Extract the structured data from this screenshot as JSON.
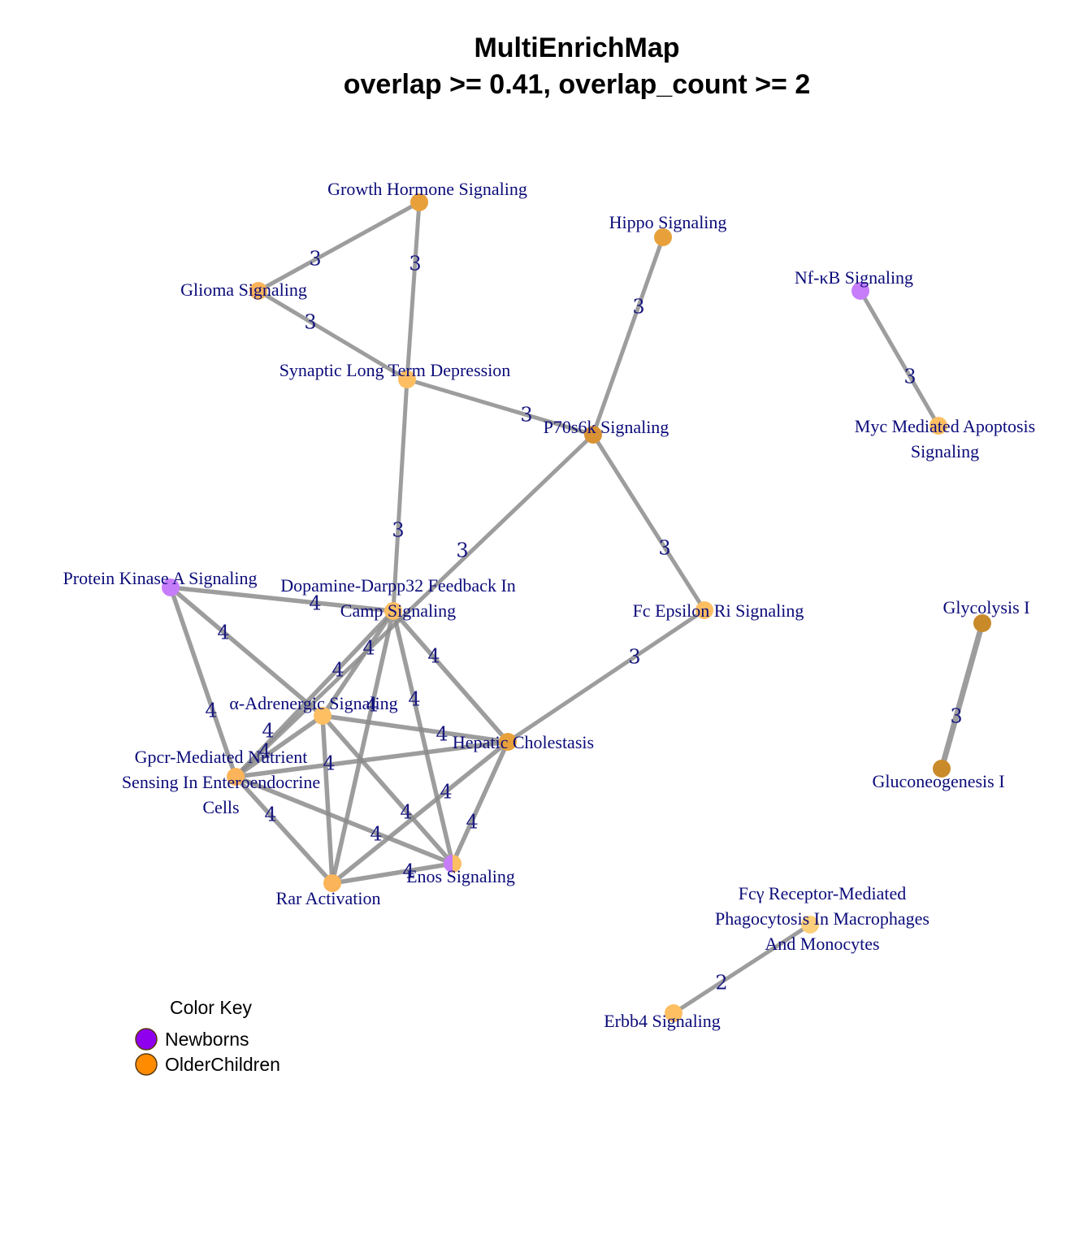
{
  "title": {
    "line1": "MultiEnrichMap",
    "line2": "overlap >= 0.41, overlap_count >= 2"
  },
  "colors": {
    "newborns": "#8f00ee",
    "older_children": "#ff8c00",
    "edge": "#8c8c8c",
    "label": "#0b0b7a"
  },
  "nodes": [
    {
      "id": "growth_hormone",
      "label": [
        "Growth Hormone Signaling"
      ],
      "fill": "#e8a13a"
    },
    {
      "id": "hippo",
      "label": [
        "Hippo Signaling"
      ],
      "fill": "#e8a13a"
    },
    {
      "id": "nfkb",
      "label": [
        "Nf-κB Signaling"
      ],
      "fill": "#c77dfa"
    },
    {
      "id": "glioma",
      "label": [
        "Glioma Signaling"
      ],
      "fill": "#fbb459"
    },
    {
      "id": "synaptic_ltd",
      "label": [
        "Synaptic Long Term Depression"
      ],
      "fill": "#fdbf62"
    },
    {
      "id": "p70s6k",
      "label": [
        "P70s6k Signaling"
      ],
      "fill": "#d99233"
    },
    {
      "id": "myc_apoptosis",
      "label": [
        "Myc Mediated Apoptosis",
        "Signaling"
      ],
      "fill": "#fdbf62"
    },
    {
      "id": "pka",
      "label": [
        "Protein Kinase A Signaling"
      ],
      "fill": "#c77dfa"
    },
    {
      "id": "dopamine",
      "label": [
        "Dopamine-Darpp32 Feedback In",
        "Camp Signaling"
      ],
      "fill": "#fdbf62"
    },
    {
      "id": "fc_epsilon",
      "label": [
        "Fc Epsilon Ri Signaling"
      ],
      "fill": "#fdbf62"
    },
    {
      "id": "glycolysis",
      "label": [
        "Glycolysis I"
      ],
      "fill": "#c98a2a"
    },
    {
      "id": "alpha_adrenergic",
      "label": [
        "α-Adrenergic Signaling"
      ],
      "fill": "#fdbf62"
    },
    {
      "id": "hepatic_cholestasis",
      "label": [
        "Hepatic Cholestasis"
      ],
      "fill": "#e8a13a"
    },
    {
      "id": "gpcr_nutrient",
      "label": [
        "Gpcr-Mediated Nutrient",
        "Sensing In Enteroendocrine",
        "Cells"
      ],
      "fill": "#fbb459"
    },
    {
      "id": "gluconeogenesis",
      "label": [
        "Gluconeogenesis I"
      ],
      "fill": "#c98a2a"
    },
    {
      "id": "rar",
      "label": [
        "Rar Activation"
      ],
      "fill": "#fbb459"
    },
    {
      "id": "enos",
      "label": [
        "Enos Signaling"
      ],
      "fill": "split"
    },
    {
      "id": "fcgamma",
      "label": [
        "Fcγ Receptor-Mediated",
        "Phagocytosis In Macrophages",
        "And Monocytes"
      ],
      "fill": "#fdcf7a"
    },
    {
      "id": "erbb4",
      "label": [
        "Erbb4 Signaling"
      ],
      "fill": "#fdbf62"
    }
  ],
  "edges": [
    {
      "from": "glioma",
      "to": "growth_hormone",
      "weight": "3"
    },
    {
      "from": "growth_hormone",
      "to": "synaptic_ltd",
      "weight": "3"
    },
    {
      "from": "glioma",
      "to": "synaptic_ltd",
      "weight": "3"
    },
    {
      "from": "synaptic_ltd",
      "to": "p70s6k",
      "weight": "3"
    },
    {
      "from": "hippo",
      "to": "p70s6k",
      "weight": "3"
    },
    {
      "from": "nfkb",
      "to": "myc_apoptosis",
      "weight": "3"
    },
    {
      "from": "synaptic_ltd",
      "to": "dopamine",
      "weight": "3"
    },
    {
      "from": "p70s6k",
      "to": "gpcr_nutrient",
      "weight": "3"
    },
    {
      "from": "p70s6k",
      "to": "fc_epsilon",
      "weight": "3"
    },
    {
      "from": "fc_epsilon",
      "to": "hepatic_cholestasis",
      "weight": "3"
    },
    {
      "from": "glycolysis",
      "to": "gluconeogenesis",
      "weight": "3"
    },
    {
      "from": "fcgamma",
      "to": "erbb4",
      "weight": "2"
    },
    {
      "from": "pka",
      "to": "dopamine",
      "weight": "4"
    },
    {
      "from": "pka",
      "to": "alpha_adrenergic",
      "weight": "4"
    },
    {
      "from": "pka",
      "to": "gpcr_nutrient",
      "weight": "4"
    },
    {
      "from": "dopamine",
      "to": "alpha_adrenergic",
      "weight": "4"
    },
    {
      "from": "dopamine",
      "to": "gpcr_nutrient",
      "weight": "4"
    },
    {
      "from": "dopamine",
      "to": "rar",
      "weight": "4"
    },
    {
      "from": "dopamine",
      "to": "enos",
      "weight": "4"
    },
    {
      "from": "dopamine",
      "to": "hepatic_cholestasis",
      "weight": "4"
    },
    {
      "from": "alpha_adrenergic",
      "to": "gpcr_nutrient",
      "weight": "4"
    },
    {
      "from": "alpha_adrenergic",
      "to": "hepatic_cholestasis",
      "weight": "4"
    },
    {
      "from": "alpha_adrenergic",
      "to": "rar",
      "weight": "4"
    },
    {
      "from": "alpha_adrenergic",
      "to": "enos",
      "weight": "4"
    },
    {
      "from": "gpcr_nutrient",
      "to": "hepatic_cholestasis",
      "weight": "4"
    },
    {
      "from": "gpcr_nutrient",
      "to": "rar",
      "weight": "4"
    },
    {
      "from": "gpcr_nutrient",
      "to": "enos",
      "weight": "4"
    },
    {
      "from": "hepatic_cholestasis",
      "to": "rar",
      "weight": "4"
    },
    {
      "from": "hepatic_cholestasis",
      "to": "enos",
      "weight": "4"
    },
    {
      "from": "rar",
      "to": "enos",
      "weight": "4"
    }
  ],
  "legend": {
    "title": "Color Key",
    "items": [
      {
        "label": "Newborns",
        "color": "#8f00ee"
      },
      {
        "label": "OlderChildren",
        "color": "#ff8c00"
      }
    ]
  }
}
